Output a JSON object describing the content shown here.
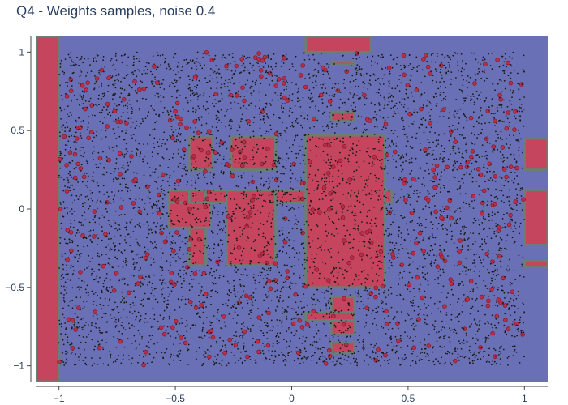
{
  "chart_data": {
    "type": "scatter",
    "title": "Q4 - Weights samples, noise 0.4",
    "xlabel": "",
    "ylabel": "",
    "xlim": [
      -1.1,
      1.1
    ],
    "ylim": [
      -1.1,
      1.1
    ],
    "grid": false,
    "legend": "none",
    "x_ticks": [
      -1,
      -0.5,
      0,
      0.5,
      1
    ],
    "x_tick_labels": [
      "−1",
      "−0.5",
      "0",
      "0.5",
      "1"
    ],
    "y_ticks": [
      1,
      0.5,
      0,
      -0.5,
      -1
    ],
    "y_tick_labels": [
      "1",
      "0.5",
      "0",
      "−0.5",
      "−1"
    ],
    "background_class_color": "#6a70b6",
    "region_class_color": "#c5455f",
    "boundary_color": "#6a7e76",
    "marker_color": "#1a1a1a",
    "marker_edge_color": "#8b1a2a",
    "regions": [
      {
        "x": [
          -1.1,
          -1.0
        ],
        "y": [
          -1.1,
          1.1
        ]
      },
      {
        "x": [
          0.06,
          0.34
        ],
        "y": [
          1.0,
          1.1
        ]
      },
      {
        "x": [
          0.17,
          0.27
        ],
        "y": [
          0.92,
          0.94
        ]
      },
      {
        "x": [
          0.17,
          0.27
        ],
        "y": [
          0.56,
          0.62
        ]
      },
      {
        "x": [
          -0.44,
          -0.34
        ],
        "y": [
          0.25,
          0.46
        ]
      },
      {
        "x": [
          -0.26,
          -0.07
        ],
        "y": [
          0.25,
          0.46
        ]
      },
      {
        "x": [
          -0.53,
          0.43
        ],
        "y": [
          0.04,
          0.12
        ]
      },
      {
        "x": [
          0.06,
          0.4
        ],
        "y": [
          -0.5,
          0.47
        ]
      },
      {
        "x": [
          -0.44,
          -0.37
        ],
        "y": [
          -0.36,
          0.12
        ]
      },
      {
        "x": [
          -0.28,
          -0.07
        ],
        "y": [
          -0.36,
          0.12
        ]
      },
      {
        "x": [
          -0.53,
          -0.35
        ],
        "y": [
          -0.12,
          0.04
        ]
      },
      {
        "x": [
          0.17,
          0.27
        ],
        "y": [
          -0.8,
          -0.56
        ]
      },
      {
        "x": [
          0.06,
          0.27
        ],
        "y": [
          -0.71,
          -0.66
        ]
      },
      {
        "x": [
          0.17,
          0.27
        ],
        "y": [
          -0.92,
          -0.85
        ]
      },
      {
        "x": [
          1.0,
          1.1
        ],
        "y": [
          0.25,
          0.45
        ]
      },
      {
        "x": [
          1.0,
          1.1
        ],
        "y": [
          -0.23,
          0.12
        ]
      },
      {
        "x": [
          1.0,
          1.1
        ],
        "y": [
          -0.37,
          -0.33
        ]
      }
    ],
    "points": {
      "count_approx": 6000,
      "x_range": [
        -1.0,
        1.0
      ],
      "y_range": [
        -1.0,
        1.0
      ]
    }
  }
}
